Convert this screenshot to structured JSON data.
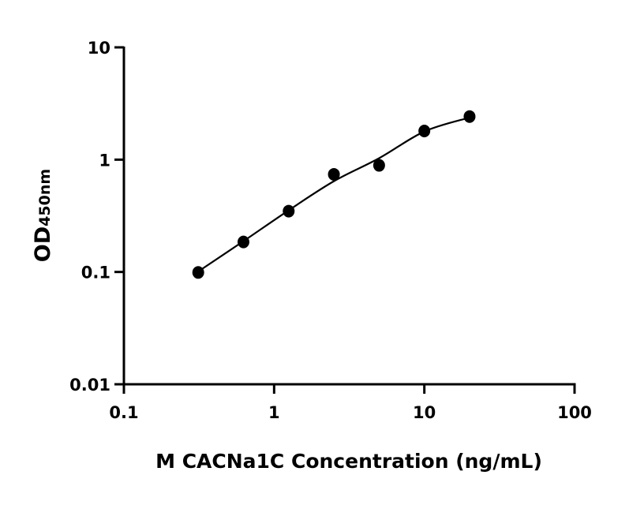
{
  "chart_data": {
    "type": "scatter",
    "title": "",
    "xlabel": "M CACNa1C Concentration (ng/mL)",
    "ylabel_main": "OD",
    "ylabel_sub": "450nm",
    "xscale": "log",
    "yscale": "log",
    "xlim": [
      0.1,
      100
    ],
    "ylim": [
      0.01,
      10
    ],
    "xticks": [
      0.1,
      1,
      10,
      100
    ],
    "xtick_labels": [
      "0.1",
      "1",
      "10",
      "100"
    ],
    "yticks": [
      0.01,
      0.1,
      1,
      10
    ],
    "ytick_labels": [
      "0.01",
      "0.1",
      "1",
      "10"
    ],
    "grid": false,
    "points": {
      "x": [
        0.3125,
        0.625,
        1.25,
        2.5,
        5,
        10,
        20
      ],
      "y": [
        0.099,
        0.185,
        0.348,
        0.74,
        0.89,
        1.8,
        2.42
      ]
    },
    "fit_curve": {
      "x": [
        0.3125,
        0.625,
        1.25,
        2.5,
        5,
        10,
        20
      ],
      "y": [
        0.101,
        0.188,
        0.354,
        0.643,
        1.03,
        1.78,
        2.37
      ]
    },
    "colors": {
      "points": "#000000",
      "curve": "#000000",
      "axes": "#000000"
    }
  }
}
